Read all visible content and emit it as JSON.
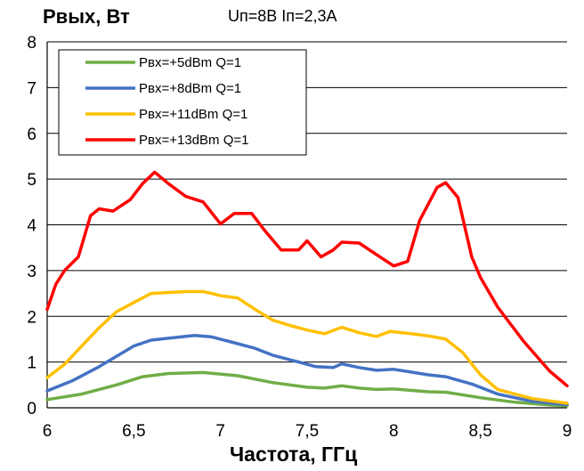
{
  "chart_data": {
    "type": "line",
    "ylabel": "Рвых, Вт",
    "subtitle": "Uп=8В Iп=2,3А",
    "xlabel": "Частота, ГГц",
    "xlim": [
      6,
      9
    ],
    "ylim": [
      0,
      8
    ],
    "x_ticks": [
      6,
      6.5,
      7,
      7.5,
      8,
      8.5,
      9
    ],
    "x_tick_labels": [
      "6",
      "6,5",
      "7",
      "7,5",
      "8",
      "8,5",
      "9"
    ],
    "y_ticks": [
      0,
      1,
      2,
      3,
      4,
      5,
      6,
      7,
      8
    ],
    "y_tick_labels": [
      "0",
      "1",
      "2",
      "3",
      "4",
      "5",
      "6",
      "7",
      "8"
    ],
    "grid": "horizontal",
    "legend_position": "top-left",
    "series": [
      {
        "name": "Рвх=+5dBm Q=1",
        "color": "#70AD47",
        "points": [
          [
            6.0,
            0.18
          ],
          [
            6.2,
            0.3
          ],
          [
            6.4,
            0.5
          ],
          [
            6.55,
            0.68
          ],
          [
            6.7,
            0.75
          ],
          [
            6.9,
            0.77
          ],
          [
            7.1,
            0.7
          ],
          [
            7.3,
            0.55
          ],
          [
            7.5,
            0.45
          ],
          [
            7.6,
            0.43
          ],
          [
            7.7,
            0.48
          ],
          [
            7.8,
            0.43
          ],
          [
            7.9,
            0.4
          ],
          [
            8.0,
            0.41
          ],
          [
            8.2,
            0.35
          ],
          [
            8.3,
            0.34
          ],
          [
            8.5,
            0.22
          ],
          [
            8.7,
            0.12
          ],
          [
            8.9,
            0.06
          ],
          [
            9.0,
            0.04
          ]
        ]
      },
      {
        "name": "Рвх=+8dBm Q=1",
        "color": "#4472C4",
        "points": [
          [
            6.0,
            0.37
          ],
          [
            6.15,
            0.6
          ],
          [
            6.3,
            0.9
          ],
          [
            6.5,
            1.35
          ],
          [
            6.6,
            1.48
          ],
          [
            6.7,
            1.52
          ],
          [
            6.85,
            1.58
          ],
          [
            6.95,
            1.55
          ],
          [
            7.05,
            1.45
          ],
          [
            7.2,
            1.3
          ],
          [
            7.3,
            1.15
          ],
          [
            7.45,
            1.0
          ],
          [
            7.55,
            0.9
          ],
          [
            7.65,
            0.88
          ],
          [
            7.7,
            0.96
          ],
          [
            7.8,
            0.88
          ],
          [
            7.9,
            0.82
          ],
          [
            8.0,
            0.84
          ],
          [
            8.1,
            0.78
          ],
          [
            8.2,
            0.72
          ],
          [
            8.3,
            0.68
          ],
          [
            8.45,
            0.52
          ],
          [
            8.6,
            0.3
          ],
          [
            8.8,
            0.14
          ],
          [
            9.0,
            0.07
          ]
        ]
      },
      {
        "name": "Рвх=+11dBm Q=1",
        "color": "#FFC000",
        "points": [
          [
            6.0,
            0.66
          ],
          [
            6.1,
            0.95
          ],
          [
            6.2,
            1.35
          ],
          [
            6.3,
            1.75
          ],
          [
            6.4,
            2.1
          ],
          [
            6.5,
            2.3
          ],
          [
            6.6,
            2.5
          ],
          [
            6.7,
            2.52
          ],
          [
            6.8,
            2.54
          ],
          [
            6.9,
            2.54
          ],
          [
            6.95,
            2.5
          ],
          [
            7.0,
            2.45
          ],
          [
            7.1,
            2.4
          ],
          [
            7.2,
            2.15
          ],
          [
            7.3,
            1.92
          ],
          [
            7.4,
            1.8
          ],
          [
            7.5,
            1.7
          ],
          [
            7.6,
            1.62
          ],
          [
            7.7,
            1.76
          ],
          [
            7.8,
            1.64
          ],
          [
            7.9,
            1.56
          ],
          [
            7.98,
            1.67
          ],
          [
            8.1,
            1.62
          ],
          [
            8.2,
            1.57
          ],
          [
            8.3,
            1.5
          ],
          [
            8.4,
            1.2
          ],
          [
            8.5,
            0.72
          ],
          [
            8.6,
            0.4
          ],
          [
            8.8,
            0.2
          ],
          [
            9.0,
            0.1
          ]
        ]
      },
      {
        "name": "Рвх=+13dBm Q=1",
        "color": "#FF0000",
        "points": [
          [
            6.0,
            2.15
          ],
          [
            6.05,
            2.7
          ],
          [
            6.1,
            3.0
          ],
          [
            6.18,
            3.3
          ],
          [
            6.25,
            4.2
          ],
          [
            6.3,
            4.35
          ],
          [
            6.38,
            4.3
          ],
          [
            6.48,
            4.55
          ],
          [
            6.55,
            4.9
          ],
          [
            6.62,
            5.15
          ],
          [
            6.7,
            4.9
          ],
          [
            6.8,
            4.62
          ],
          [
            6.9,
            4.5
          ],
          [
            7.0,
            4.02
          ],
          [
            7.08,
            4.25
          ],
          [
            7.18,
            4.25
          ],
          [
            7.25,
            3.9
          ],
          [
            7.35,
            3.45
          ],
          [
            7.45,
            3.45
          ],
          [
            7.5,
            3.65
          ],
          [
            7.58,
            3.3
          ],
          [
            7.65,
            3.45
          ],
          [
            7.7,
            3.62
          ],
          [
            7.8,
            3.6
          ],
          [
            7.9,
            3.35
          ],
          [
            8.0,
            3.1
          ],
          [
            8.08,
            3.2
          ],
          [
            8.15,
            4.1
          ],
          [
            8.25,
            4.82
          ],
          [
            8.3,
            4.92
          ],
          [
            8.37,
            4.6
          ],
          [
            8.45,
            3.3
          ],
          [
            8.5,
            2.85
          ],
          [
            8.6,
            2.2
          ],
          [
            8.75,
            1.45
          ],
          [
            8.9,
            0.8
          ],
          [
            9.0,
            0.48
          ]
        ]
      }
    ]
  }
}
